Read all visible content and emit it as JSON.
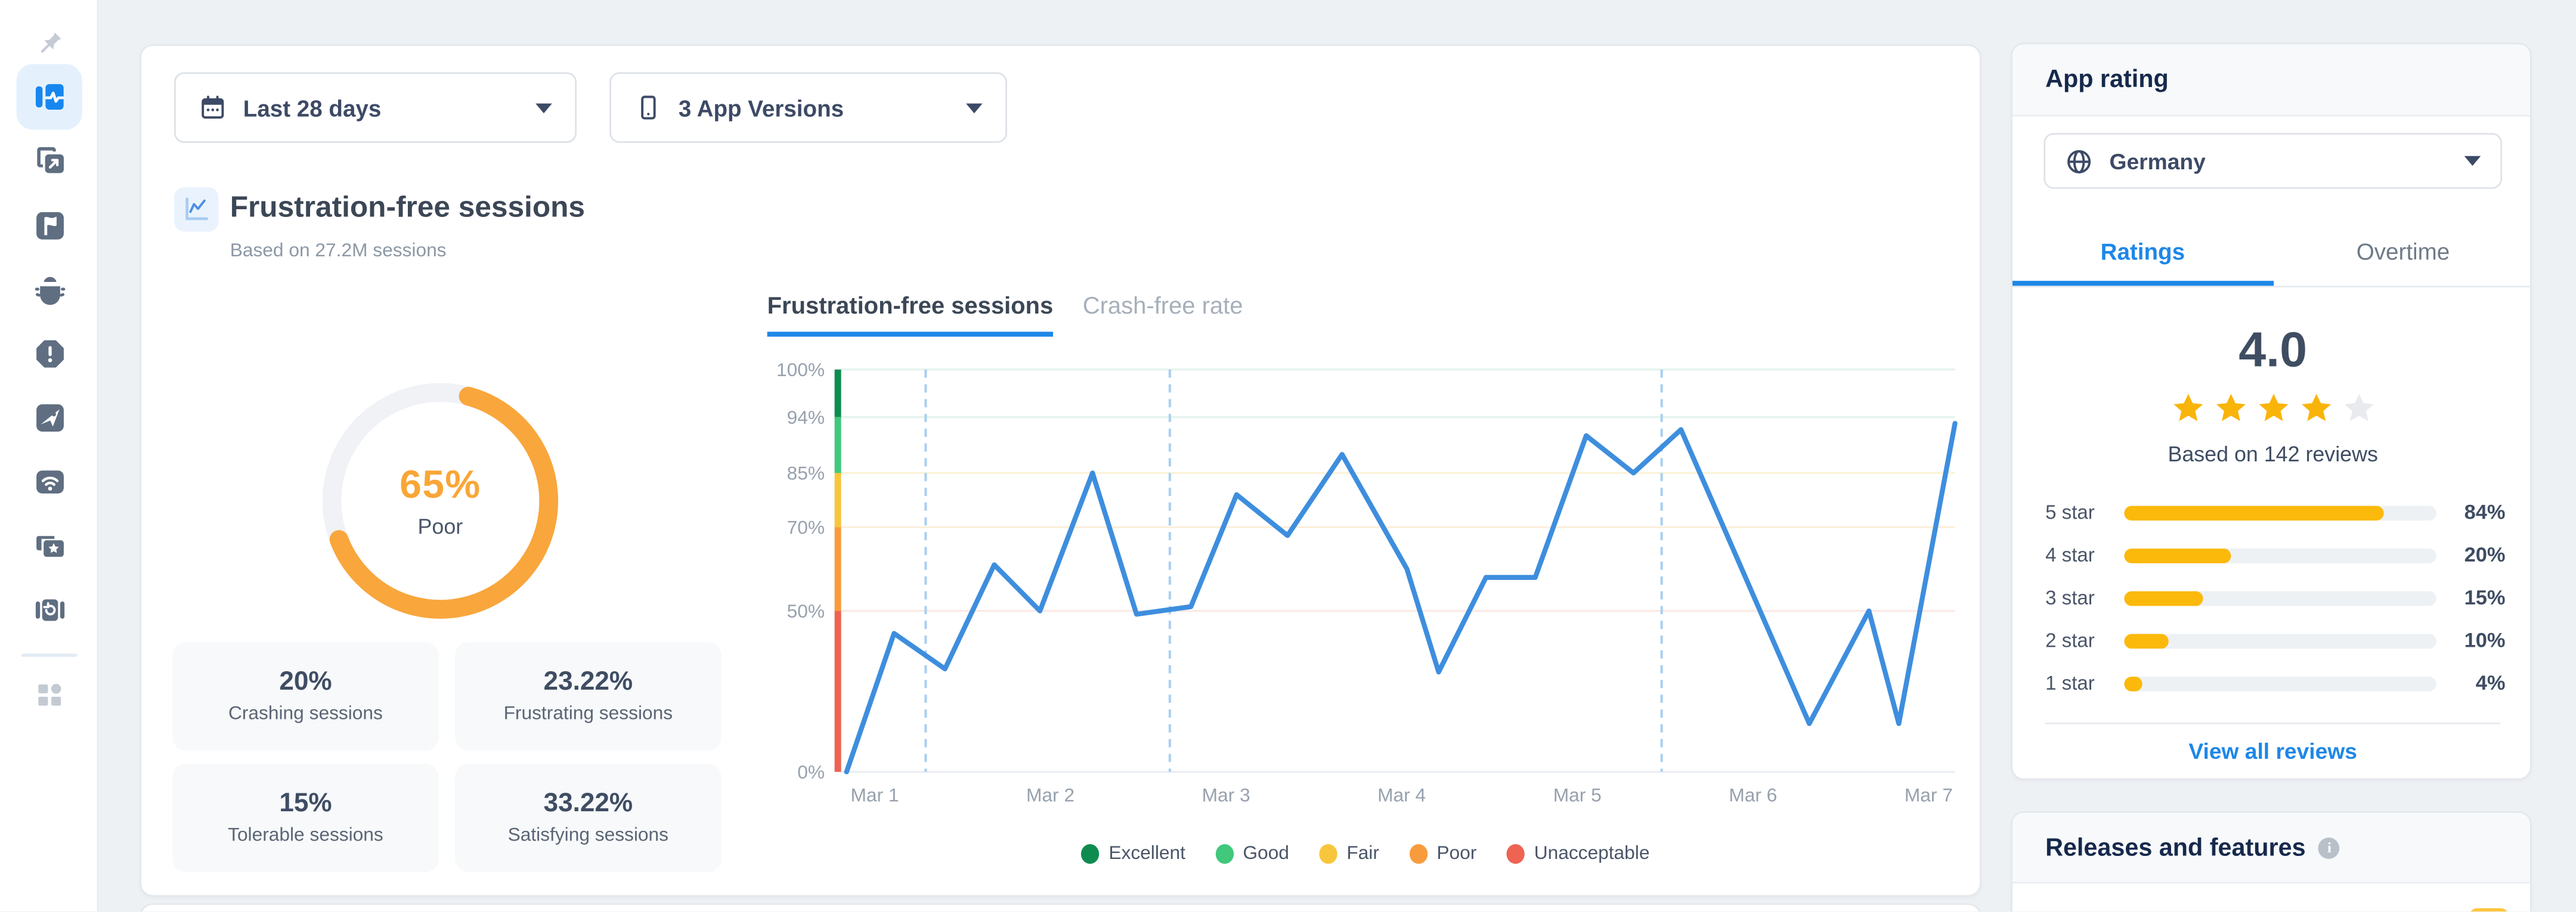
{
  "colors": {
    "accent_blue": "#1F87E8",
    "line_blue": "#3E8EDE",
    "donut_orange": "#F9A63C",
    "star_gold": "#F9B409"
  },
  "sidebar": {
    "items": [
      "pin",
      "session-health",
      "export",
      "flag",
      "bug",
      "alert",
      "launch",
      "network",
      "ratings",
      "replay",
      "apps"
    ]
  },
  "filters": {
    "date_range": "Last 28 days",
    "app_versions": "3 App Versions"
  },
  "header": {
    "title": "Frustration-free sessions",
    "subtitle": "Based on 27.2M sessions"
  },
  "stats": [
    {
      "value": "20%",
      "label": "Crashing sessions"
    },
    {
      "value": "23.22%",
      "label": "Frustrating sessions"
    },
    {
      "value": "15%",
      "label": "Tolerable sessions"
    },
    {
      "value": "33.22%",
      "label": "Satisfying sessions"
    }
  ],
  "chart_tabs": {
    "active": "Frustration-free sessions",
    "inactive": "Crash-free rate"
  },
  "chart_data": [
    {
      "type": "line",
      "title": "Frustration-free sessions",
      "series": [
        {
          "name": "Frustration-free sessions",
          "color": "#3E8EDE",
          "points": [
            {
              "x": 0.84,
              "y": 0
            },
            {
              "x": 1.11,
              "y": 43
            },
            {
              "x": 1.4,
              "y": 32
            },
            {
              "x": 1.68,
              "y": 61
            },
            {
              "x": 1.94,
              "y": 50
            },
            {
              "x": 2.24,
              "y": 85
            },
            {
              "x": 2.49,
              "y": 49
            },
            {
              "x": 2.8,
              "y": 51
            },
            {
              "x": 3.06,
              "y": 79
            },
            {
              "x": 3.35,
              "y": 68
            },
            {
              "x": 3.66,
              "y": 88
            },
            {
              "x": 4.03,
              "y": 60
            },
            {
              "x": 4.21,
              "y": 31
            },
            {
              "x": 4.48,
              "y": 58
            },
            {
              "x": 4.76,
              "y": 58
            },
            {
              "x": 5.05,
              "y": 91
            },
            {
              "x": 5.32,
              "y": 85
            },
            {
              "x": 5.59,
              "y": 92
            },
            {
              "x": 6.32,
              "y": 15
            },
            {
              "x": 6.66,
              "y": 50
            },
            {
              "x": 6.83,
              "y": 15
            },
            {
              "x": 7.15,
              "y": 93
            }
          ]
        }
      ],
      "x_ticks": [
        {
          "label": "Mar 1",
          "x": 1
        },
        {
          "label": "Mar 2",
          "x": 2
        },
        {
          "label": "Mar 3",
          "x": 3
        },
        {
          "label": "Mar 4",
          "x": 4
        },
        {
          "label": "Mar 5",
          "x": 5
        },
        {
          "label": "Mar 6",
          "x": 6
        },
        {
          "label": "Mar 7",
          "x": 7
        }
      ],
      "y_ticks": [
        {
          "label": "100%",
          "value": 100,
          "band_color": "#0E8C4F",
          "grid_color": "#E4F3EC"
        },
        {
          "label": "94%",
          "value": 94,
          "band_color": "#41C87C",
          "grid_color": "#E4F3EC"
        },
        {
          "label": "85%",
          "value": 85,
          "band_color": "#F8C63D",
          "grid_color": "#FBF3D9"
        },
        {
          "label": "70%",
          "value": 70,
          "band_color": "#F89B3D",
          "grid_color": "#FCEFDC"
        },
        {
          "label": "50%",
          "value": 50,
          "band_color": "#EE6352",
          "grid_color": "#FBE9E6"
        },
        {
          "label": "0%",
          "value": 0,
          "band_color": null,
          "grid_color": "#EAEDF1"
        }
      ],
      "x_range": [
        0.79,
        7.15
      ],
      "ylim": [
        0,
        100
      ],
      "dashed_lines_x": [
        1.29,
        2.68,
        5.48
      ],
      "dashed_line_color": "#ABCFEF",
      "grid": true,
      "legend_position": "bottom",
      "legend": [
        {
          "label": "Excellent",
          "color": "#0E8C4F"
        },
        {
          "label": "Good",
          "color": "#41C87C"
        },
        {
          "label": "Fair",
          "color": "#F8C63D"
        },
        {
          "label": "Poor",
          "color": "#F89B3D"
        },
        {
          "label": "Unacceptable",
          "color": "#EE6352"
        }
      ]
    },
    {
      "type": "donut",
      "value": 65,
      "value_label": "65%",
      "category": "Poor",
      "color": "#F9A63C",
      "track_color": "#F0F2F6",
      "start_angle_deg": 15
    }
  ],
  "app_rating": {
    "header": "App rating",
    "country": "Germany",
    "tabs": {
      "active": "Ratings",
      "inactive": "Overtime"
    },
    "score": "4.0",
    "stars_filled": 4,
    "stars_total": 5,
    "based_on": "Based on 142 reviews",
    "rows": [
      {
        "label": "5 star",
        "pct": "84%",
        "fill": 0.83
      },
      {
        "label": "4 star",
        "pct": "20%",
        "fill": 0.34
      },
      {
        "label": "3 star",
        "pct": "15%",
        "fill": 0.25
      },
      {
        "label": "2 star",
        "pct": "10%",
        "fill": 0.14
      },
      {
        "label": "1 star",
        "pct": "4%",
        "fill": 0.06
      }
    ],
    "link": "View all reviews"
  },
  "releases": {
    "header": "Releases and features"
  }
}
